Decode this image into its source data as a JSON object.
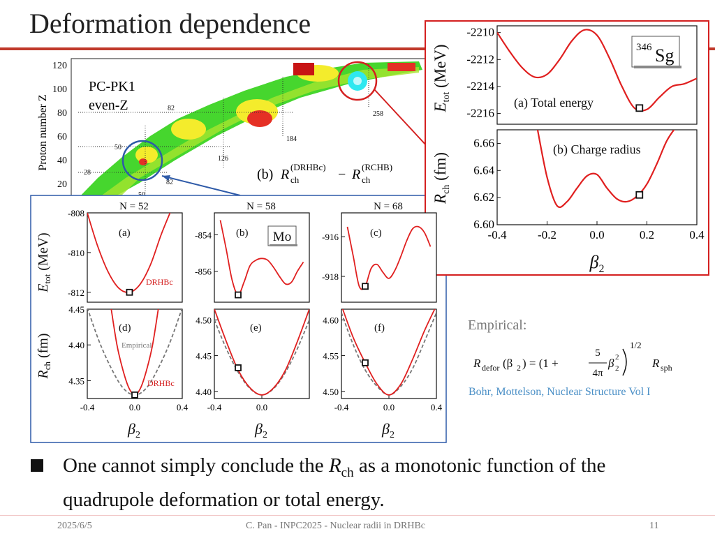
{
  "slide": {
    "title": "Deformation dependence",
    "bullet_pre": "One cannot simply conclude the ",
    "bullet_var": "R",
    "bullet_sub": "ch",
    "bullet_post": " as a monotonic function of the quadrupole deformation or total energy.",
    "empirical_label": "Empirical:",
    "formula_lhs": "R",
    "formula_lhs_sub": "defor",
    "formula_arg": "(β",
    "formula_arg_sub": "2",
    "formula_mid": ") = (1 +",
    "formula_num": "5",
    "formula_den": "4π",
    "formula_beta": "β",
    "formula_beta_sup": "2",
    "formula_beta_sub": "2",
    "formula_exp": "1/2",
    "formula_rhs": "R",
    "formula_rhs_sub": "sph",
    "reference": "Bohr, Mottelson, Nuclear Structure Vol I",
    "footer_date": "2025/6/5",
    "footer_center": "C. Pan - INPC2025 - Nuclear radii in DRHBc",
    "footer_page": "11"
  },
  "nuclide_map": {
    "ylabel": "Proton number Z",
    "yticks": [
      "120",
      "100",
      "80",
      "60",
      "40",
      "20"
    ],
    "label1": "PC-PK1",
    "label2": "even-Z",
    "magic": [
      "82",
      "50",
      "28",
      "184",
      "126",
      "258",
      "82",
      "50"
    ],
    "panel_label": "(b)",
    "formula": "R(DRHBc) − R(RCHB)",
    "formula_r1": "R",
    "formula_sup1": "(DRHBc)",
    "formula_sub1": "ch",
    "formula_minus": "−",
    "formula_r2": "R",
    "formula_sup2": "(RCHB)",
    "formula_sub2": "ch",
    "colors": {
      "red": "#e53025",
      "yellow": "#f4ec2c",
      "green": "#46d62e",
      "cyan": "#2ee8f0",
      "white": "#ffffff"
    }
  },
  "chart_data": [
    {
      "type": "line",
      "title": "N = 52",
      "panel": "(a)",
      "ylabel": "Etot (MeV)",
      "ylim": [
        -812.5,
        -808
      ],
      "yticks": [
        "-808",
        "-810",
        "-812"
      ],
      "series": [
        {
          "name": "DRHBc",
          "color": "#e02020",
          "x": [
            -0.2,
            -0.15,
            -0.1,
            -0.05,
            0.0,
            0.05,
            0.1,
            0.15,
            0.2
          ],
          "y": [
            -808.0,
            -809.7,
            -811.0,
            -811.8,
            -812.0,
            -811.6,
            -810.6,
            -809.1,
            -807.8
          ]
        }
      ],
      "marker": {
        "x": 0.0,
        "y": -812.0
      },
      "annotation": "DRHBc"
    },
    {
      "type": "line",
      "title": "N = 58",
      "panel": "(b)",
      "box_label": "Mo",
      "ylim": [
        -857.7,
        -852.8
      ],
      "yticks": [
        "-854",
        "-856"
      ],
      "series": [
        {
          "name": "DRHBc",
          "color": "#e02020",
          "x": [
            -0.35,
            -0.3,
            -0.25,
            -0.2,
            -0.15,
            -0.1,
            -0.05,
            0.0,
            0.05,
            0.1,
            0.15,
            0.2,
            0.25,
            0.3,
            0.35
          ],
          "y": [
            -853.2,
            -854.8,
            -856.5,
            -857.3,
            -856.6,
            -855.7,
            -855.4,
            -855.3,
            -855.4,
            -855.8,
            -856.3,
            -856.7,
            -856.6,
            -856.0,
            -855.5
          ]
        }
      ],
      "marker": {
        "x": -0.2,
        "y": -857.3
      }
    },
    {
      "type": "line",
      "title": "N = 68",
      "panel": "(c)",
      "ylim": [
        -919.3,
        -914.8
      ],
      "yticks": [
        "-916",
        "-918"
      ],
      "series": [
        {
          "name": "DRHBc",
          "color": "#e02020",
          "x": [
            -0.35,
            -0.3,
            -0.25,
            -0.2,
            -0.15,
            -0.1,
            -0.05,
            0.0,
            0.05,
            0.1,
            0.15,
            0.2,
            0.25,
            0.3,
            0.35
          ],
          "y": [
            -915.5,
            -917.0,
            -918.5,
            -918.5,
            -917.6,
            -917.4,
            -917.8,
            -918.1,
            -917.7,
            -917.0,
            -916.2,
            -915.6,
            -915.5,
            -915.8,
            -916.5
          ]
        }
      ],
      "marker": {
        "x": -0.2,
        "y": -918.5
      }
    },
    {
      "type": "line",
      "panel": "(d)",
      "ylabel": "Rch (fm)",
      "xlabel": "β2",
      "ylim": [
        4.325,
        4.45
      ],
      "yticks": [
        "4.45",
        "4.40",
        "4.35"
      ],
      "xticks": [
        "-0.4",
        "0.0",
        "0.4"
      ],
      "series": [
        {
          "name": "DRHBc",
          "color": "#e02020",
          "x": [
            -0.2,
            -0.15,
            -0.1,
            -0.05,
            0.0,
            0.05,
            0.1,
            0.15,
            0.2
          ],
          "y": [
            4.452,
            4.4,
            4.365,
            4.34,
            4.33,
            4.34,
            4.365,
            4.4,
            4.452
          ]
        },
        {
          "name": "Empirical",
          "color": "#777777",
          "dashed": true,
          "x": [
            -0.4,
            -0.3,
            -0.2,
            -0.1,
            0.0,
            0.1,
            0.2,
            0.3,
            0.4
          ],
          "y": [
            4.452,
            4.405,
            4.368,
            4.34,
            4.33,
            4.34,
            4.368,
            4.405,
            4.452
          ]
        }
      ],
      "marker": {
        "x": 0.0,
        "y": 4.33
      },
      "annotations": [
        "Empirical",
        "DRHBc"
      ]
    },
    {
      "type": "line",
      "panel": "(e)",
      "xlabel": "β2",
      "ylim": [
        4.39,
        4.515
      ],
      "yticks": [
        "4.50",
        "4.45",
        "4.40"
      ],
      "xticks": [
        "-0.4",
        "0.0"
      ],
      "series": [
        {
          "name": "DRHBc",
          "color": "#e02020",
          "x": [
            -0.4,
            -0.3,
            -0.2,
            -0.1,
            0.0,
            0.1,
            0.2,
            0.3,
            0.4
          ],
          "y": [
            4.515,
            4.47,
            4.43,
            4.405,
            4.395,
            4.405,
            4.43,
            4.47,
            4.515
          ]
        },
        {
          "name": "Empirical",
          "color": "#777777",
          "dashed": true,
          "x": [
            -0.4,
            -0.3,
            -0.2,
            -0.1,
            0.0,
            0.1,
            0.2,
            0.3,
            0.4
          ],
          "y": [
            4.5,
            4.46,
            4.427,
            4.404,
            4.395,
            4.404,
            4.427,
            4.46,
            4.5
          ]
        }
      ],
      "marker": {
        "x": -0.2,
        "y": 4.433
      }
    },
    {
      "type": "line",
      "panel": "(f)",
      "xlabel": "β2",
      "ylim": [
        4.49,
        4.615
      ],
      "yticks": [
        "4.60",
        "4.55",
        "4.50"
      ],
      "xticks": [
        "-0.4",
        "0.0",
        "0.4"
      ],
      "series": [
        {
          "name": "DRHBc",
          "color": "#e02020",
          "x": [
            -0.4,
            -0.3,
            -0.2,
            -0.1,
            0.0,
            0.1,
            0.2,
            0.3,
            0.4
          ],
          "y": [
            4.62,
            4.575,
            4.54,
            4.51,
            4.495,
            4.51,
            4.545,
            4.585,
            4.62
          ]
        },
        {
          "name": "Empirical",
          "color": "#777777",
          "dashed": true,
          "x": [
            -0.4,
            -0.3,
            -0.2,
            -0.1,
            0.0,
            0.1,
            0.2,
            0.3,
            0.4
          ],
          "y": [
            4.61,
            4.565,
            4.53,
            4.507,
            4.495,
            4.507,
            4.532,
            4.57,
            4.61
          ]
        }
      ],
      "marker": {
        "x": -0.2,
        "y": 4.54
      }
    },
    {
      "type": "line",
      "panel": "(a) Total energy",
      "box_label": "Sg",
      "box_sup": "346",
      "ylabel": "Etot (MeV)",
      "ylim": [
        -2216.8,
        -2209.5
      ],
      "yticks": [
        "-2210",
        "-2212",
        "-2214",
        "-2216"
      ],
      "series": [
        {
          "name": "DRHBc",
          "color": "#e02020",
          "x": [
            -0.4,
            -0.35,
            -0.3,
            -0.25,
            -0.2,
            -0.15,
            -0.1,
            -0.05,
            0.0,
            0.05,
            0.1,
            0.15,
            0.2,
            0.25,
            0.3,
            0.35,
            0.4
          ],
          "y": [
            -2210.0,
            -2211.4,
            -2212.6,
            -2213.3,
            -2213.1,
            -2212.0,
            -2210.6,
            -2209.8,
            -2210.2,
            -2211.9,
            -2214.0,
            -2215.6,
            -2215.7,
            -2214.8,
            -2214.0,
            -2213.8,
            -2213.4
          ]
        }
      ],
      "marker": {
        "x": 0.17,
        "y": -2215.6
      }
    },
    {
      "type": "line",
      "panel": "(b) Charge radius",
      "ylabel": "Rch (fm)",
      "xlabel": "β2",
      "ylim": [
        6.6,
        6.67
      ],
      "yticks": [
        "6.66",
        "6.64",
        "6.62",
        "6.60"
      ],
      "xticks": [
        "-0.4",
        "-0.2",
        "0.0",
        "0.2",
        "0.4"
      ],
      "series": [
        {
          "name": "DRHBc",
          "color": "#e02020",
          "x": [
            -0.24,
            -0.2,
            -0.16,
            -0.12,
            -0.08,
            -0.04,
            0.0,
            0.04,
            0.08,
            0.12,
            0.16,
            0.2,
            0.24,
            0.28,
            0.32
          ],
          "y": [
            6.672,
            6.635,
            6.614,
            6.617,
            6.627,
            6.636,
            6.637,
            6.627,
            6.619,
            6.617,
            6.621,
            6.63,
            6.645,
            6.662,
            6.673
          ]
        }
      ],
      "marker": {
        "x": 0.17,
        "y": 6.622
      }
    }
  ]
}
